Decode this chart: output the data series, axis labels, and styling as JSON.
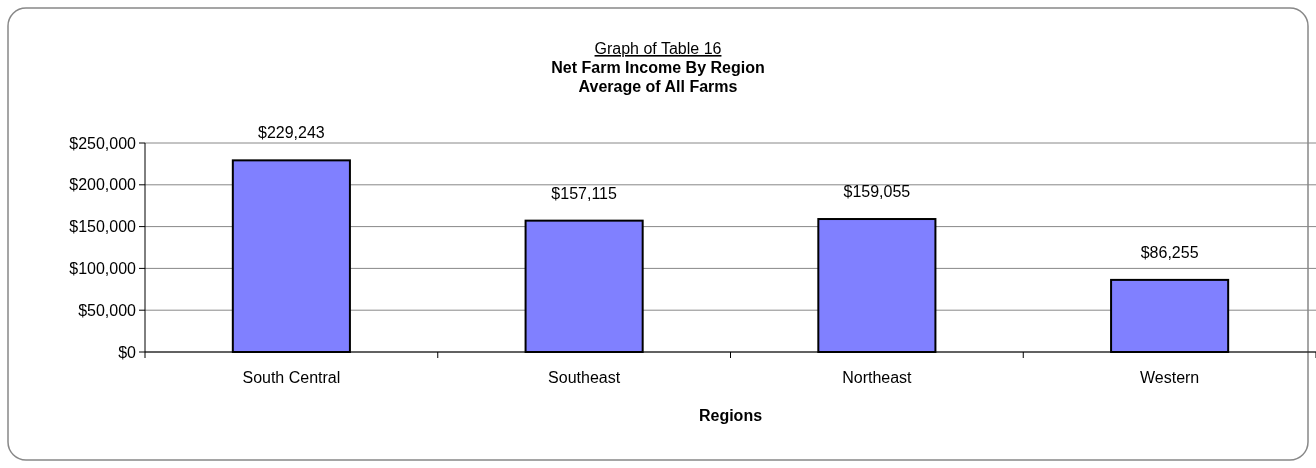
{
  "chart_data": {
    "type": "bar",
    "title": "Net Farm Income By Region",
    "subtitle": "Average of All Farms",
    "annotations": [
      "Graph of Table 16"
    ],
    "xlabel": "Regions",
    "categories": [
      "South Central",
      "Southeast",
      "Northeast",
      "Western"
    ],
    "values": [
      229243,
      157115,
      159055,
      86255
    ],
    "value_labels": [
      "$229,243",
      "$157,115",
      "$159,055",
      "$86,255"
    ],
    "color": "#8080ff",
    "ylim": [
      0,
      250000
    ],
    "yticks": [
      {
        "value": 0,
        "label": "$0"
      },
      {
        "value": 50000,
        "label": "$50,000"
      },
      {
        "value": 100000,
        "label": "$100,000"
      },
      {
        "value": 150000,
        "label": "$150,000"
      },
      {
        "value": 200000,
        "label": "$200,000"
      },
      {
        "value": 250000,
        "label": "$250,000"
      }
    ],
    "grid": "y"
  }
}
